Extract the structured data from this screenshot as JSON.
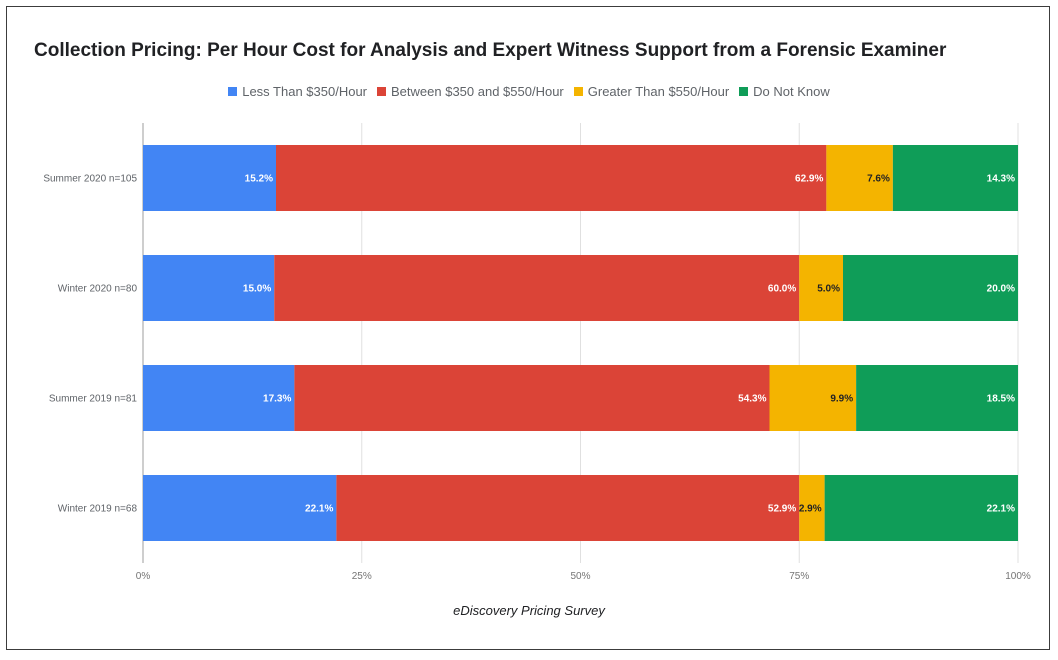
{
  "chart_data": {
    "type": "bar",
    "orientation": "horizontal",
    "stacked": "percent",
    "title": "Collection Pricing: Per Hour Cost for Analysis and Expert Witness Support from a Forensic Examiner",
    "xlabel": "eDiscovery Pricing Survey",
    "ylabel": "",
    "xlim": [
      0,
      100
    ],
    "x_ticks": [
      "0%",
      "25%",
      "50%",
      "75%",
      "100%"
    ],
    "categories": [
      "Summer 2020 n=105",
      "Winter 2020 n=80",
      "Summer 2019 n=81",
      "Winter 2019 n=68"
    ],
    "series": [
      {
        "name": "Less Than $350/Hour",
        "color": "#4285f4",
        "values": [
          15.2,
          15.0,
          17.3,
          22.1
        ],
        "labels": [
          "15.2%",
          "15.0%",
          "17.3%",
          "22.1%"
        ]
      },
      {
        "name": "Between $350 and $550/Hour",
        "color": "#db4437",
        "values": [
          62.9,
          60.0,
          54.3,
          52.9
        ],
        "labels": [
          "62.9%",
          "60.0%",
          "54.3%",
          "52.9%"
        ]
      },
      {
        "name": "Greater Than $550/Hour",
        "color": "#f4b400",
        "values": [
          7.6,
          5.0,
          9.9,
          2.9
        ],
        "labels": [
          "7.6%",
          "5.0%",
          "9.9%",
          "2.9%"
        ]
      },
      {
        "name": "Do Not Know",
        "color": "#0f9d58",
        "values": [
          14.3,
          20.0,
          18.5,
          22.1
        ],
        "labels": [
          "14.3%",
          "20.0%",
          "18.5%",
          "22.1%"
        ]
      }
    ],
    "legend_position": "top",
    "grid": true
  }
}
